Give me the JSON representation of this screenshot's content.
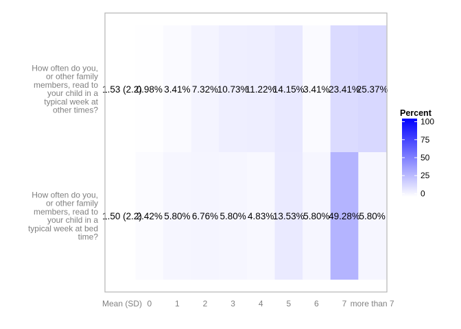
{
  "chart_data": {
    "type": "heatmap",
    "x_categories": [
      "Mean (SD)",
      "0",
      "1",
      "2",
      "3",
      "4",
      "5",
      "6",
      "7",
      "more than 7"
    ],
    "rows": [
      {
        "label_lines": [
          "How often do you,",
          "or other family",
          "members, read to",
          "your child in a",
          "typical week at",
          "other times?"
        ],
        "mean_sd": "1.53 (2.2)",
        "values": [
          0.98,
          3.41,
          7.32,
          10.73,
          11.22,
          14.15,
          3.41,
          23.41,
          25.37
        ],
        "labels": [
          "0.98%",
          "3.41%",
          "7.32%",
          "10.73%",
          "11.22%",
          "14.15%",
          "3.41%",
          "23.41%",
          "25.37%"
        ]
      },
      {
        "label_lines": [
          "How often do you,",
          "or other family",
          "members, read to",
          "your child in a",
          "typical week at bed",
          "time?"
        ],
        "mean_sd": "1.50 (2.2)",
        "values": [
          2.42,
          5.8,
          6.76,
          5.8,
          4.83,
          13.53,
          5.8,
          49.28,
          5.8
        ],
        "labels": [
          "2.42%",
          "5.80%",
          "6.76%",
          "5.80%",
          "4.83%",
          "13.53%",
          "5.80%",
          "49.28%",
          "5.80%"
        ]
      }
    ],
    "legend": {
      "title": "Percent",
      "ticks": [
        "100",
        "75",
        "50",
        "25",
        "0"
      ],
      "tick_values": [
        100,
        75,
        50,
        25,
        0
      ],
      "range": [
        0,
        100
      ],
      "low_color": "#ffffff",
      "high_color": "#0000ff"
    },
    "panel_border_color": "#b3b3b3"
  }
}
